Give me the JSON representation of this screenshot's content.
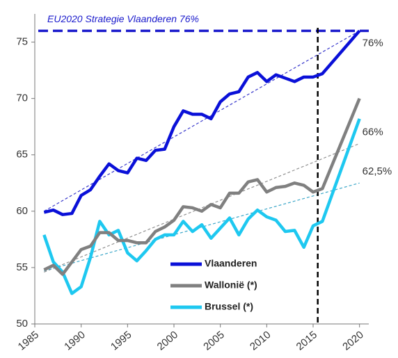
{
  "chart_data": {
    "type": "line",
    "x": [
      1986,
      1987,
      1988,
      1989,
      1990,
      1991,
      1992,
      1993,
      1994,
      1995,
      1996,
      1997,
      1998,
      1999,
      2000,
      2001,
      2002,
      2003,
      2004,
      2005,
      2006,
      2007,
      2008,
      2009,
      2010,
      2011,
      2012,
      2013,
      2014,
      2015,
      2016,
      2020
    ],
    "series": [
      {
        "name": "Vlaanderen",
        "color": "#0a10d8",
        "values": [
          59.9,
          60.1,
          59.7,
          59.8,
          61.4,
          61.9,
          63.1,
          64.2,
          63.6,
          63.4,
          64.7,
          64.5,
          65.4,
          65.5,
          67.5,
          68.9,
          68.6,
          68.6,
          68.2,
          69.7,
          70.4,
          70.6,
          71.9,
          72.3,
          71.5,
          72.1,
          71.8,
          71.5,
          71.9,
          71.9,
          72.2,
          76.0
        ]
      },
      {
        "name": "Wallonië (*)",
        "color": "#808080",
        "values": [
          54.8,
          55.2,
          54.4,
          55.5,
          56.6,
          56.9,
          58.1,
          58.1,
          57.4,
          57.4,
          57.2,
          57.2,
          58.2,
          58.6,
          59.2,
          60.4,
          60.3,
          60.0,
          60.6,
          60.3,
          61.6,
          61.6,
          62.6,
          62.8,
          61.7,
          62.1,
          62.2,
          62.5,
          62.3,
          61.7,
          62.0,
          70.0
        ]
      },
      {
        "name": "Brussel (*)",
        "color": "#1ec8f0",
        "values": [
          57.9,
          55.5,
          54.6,
          52.7,
          53.3,
          55.9,
          59.1,
          57.9,
          58.3,
          56.3,
          55.6,
          56.5,
          57.5,
          57.9,
          57.9,
          59.1,
          58.2,
          58.8,
          57.6,
          58.5,
          59.4,
          57.9,
          59.3,
          60.1,
          59.5,
          59.2,
          58.2,
          58.3,
          56.8,
          58.7,
          59.1,
          68.2
        ]
      }
    ],
    "trends": [
      {
        "x": [
          1986,
          2020
        ],
        "values": [
          60,
          76
        ],
        "label": "76%",
        "color": "#3a3acc"
      },
      {
        "x": [
          1986,
          2020
        ],
        "values": [
          54.6,
          66
        ],
        "label": "66%",
        "color": "#909090"
      },
      {
        "x": [
          1986,
          2020
        ],
        "values": [
          54.7,
          62.5
        ],
        "label": "62,5%",
        "color": "#3aa6c8"
      }
    ],
    "target": {
      "value": 76,
      "label": "EU2020 Strategie Vlaanderen 76%",
      "color": "#1a1acc"
    },
    "vline": 2015.5,
    "xlim": [
      1985,
      2021
    ],
    "xticks": [
      1985,
      1990,
      1995,
      2000,
      2005,
      2010,
      2015,
      2020
    ],
    "ylim": [
      50,
      77.5
    ],
    "yticks": [
      50,
      55,
      60,
      65,
      70,
      75
    ]
  }
}
